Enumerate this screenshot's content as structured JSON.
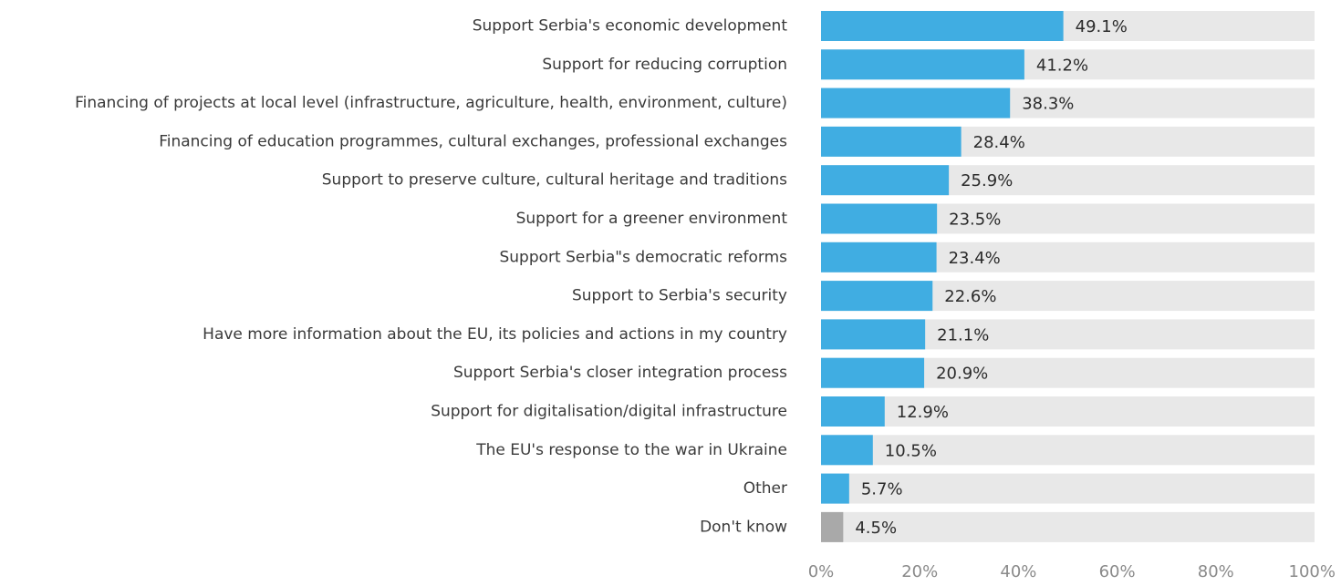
{
  "chart_data": {
    "type": "bar",
    "orientation": "horizontal",
    "categories": [
      "Support Serbia's economic development",
      "Support for reducing corruption",
      "Financing of projects at local level (infrastructure, agriculture, health, environment, culture)",
      "Financing of education programmes, cultural exchanges, professional exchanges",
      "Support to preserve culture, cultural heritage and traditions",
      "Support for a greener environment",
      "Support Serbia\"s democratic reforms",
      "Support to Serbia's security",
      "Have more information about the EU, its policies and actions in my country",
      "Support Serbia's closer integration process",
      "Support for digitalisation/digital infrastructure",
      "The EU's response to the war in Ukraine",
      "Other",
      "Don't know"
    ],
    "values": [
      49.1,
      41.2,
      38.3,
      28.4,
      25.9,
      23.5,
      23.4,
      22.6,
      21.1,
      20.9,
      12.9,
      10.5,
      5.7,
      4.5
    ],
    "value_labels": [
      "49.1%",
      "41.2%",
      "38.3%",
      "28.4%",
      "25.9%",
      "23.5%",
      "23.4%",
      "22.6%",
      "21.1%",
      "20.9%",
      "12.9%",
      "10.5%",
      "5.7%",
      "4.5%"
    ],
    "xlim": [
      0,
      100
    ],
    "xticks": [
      "0%",
      "20%",
      "40%",
      "60%",
      "80%",
      "100%"
    ],
    "title": "",
    "xlabel": "",
    "ylabel": "",
    "grid": false,
    "colors": {
      "bar": "#40ade2",
      "bar_dont_know": "#a9a9a9",
      "track": "#e8e8e8"
    }
  }
}
